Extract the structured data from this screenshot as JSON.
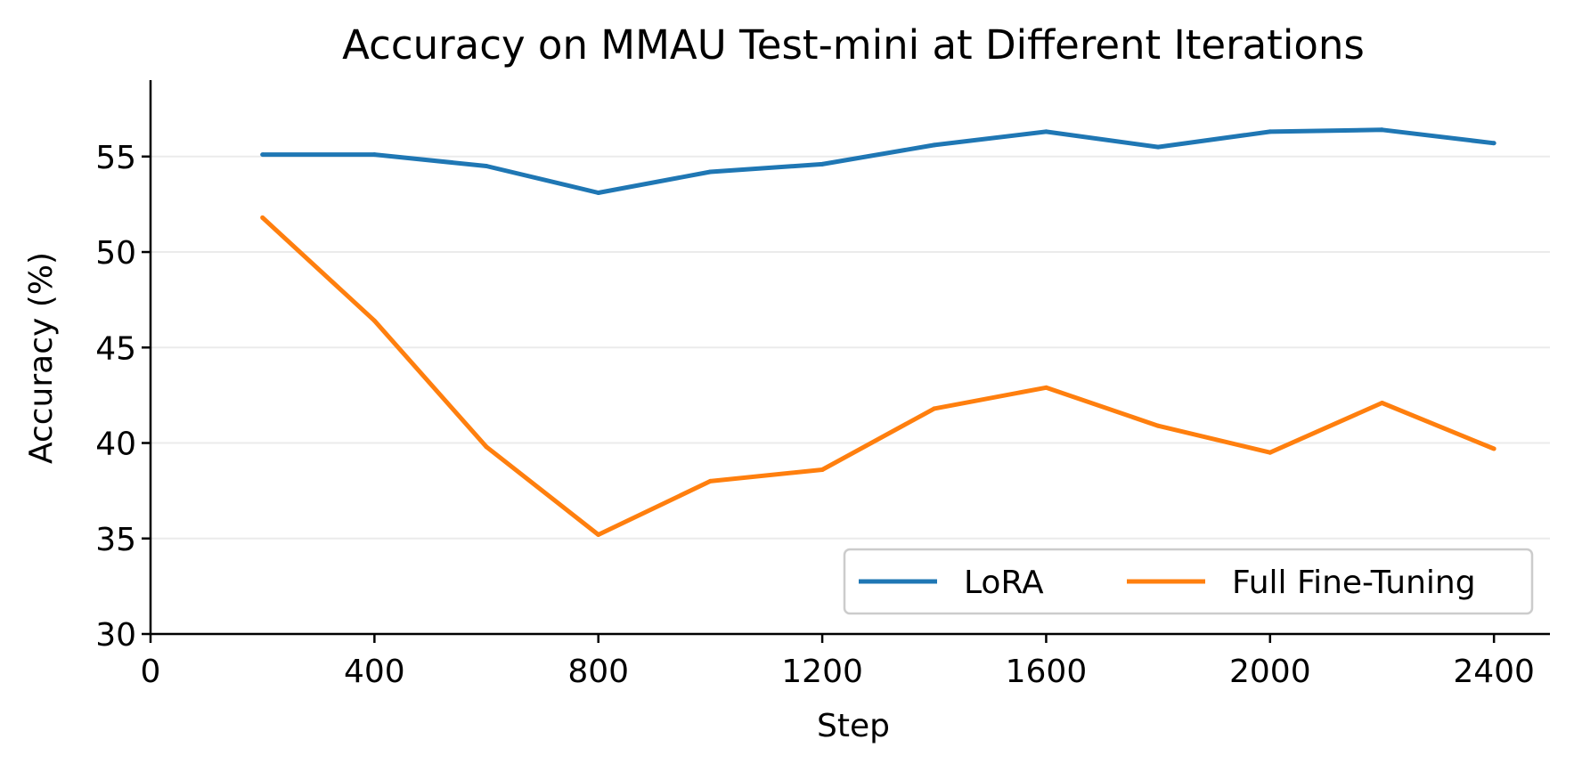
{
  "chart_data": {
    "type": "line",
    "title": "Accuracy on MMAU Test-mini at Different Iterations",
    "xlabel": "Step",
    "ylabel": "Accuracy (%)",
    "xlim": [
      0,
      2500
    ],
    "ylim": [
      30,
      59
    ],
    "xticks": [
      0,
      400,
      800,
      1200,
      1600,
      2000,
      2400
    ],
    "yticks": [
      30,
      35,
      40,
      45,
      50,
      55
    ],
    "grid": "horizontal",
    "legend_position": "lower-right",
    "x": [
      200,
      400,
      600,
      800,
      1000,
      1200,
      1400,
      1600,
      1800,
      2000,
      2200,
      2400
    ],
    "series": [
      {
        "name": "LoRA",
        "color": "#1f77b4",
        "values": [
          55.1,
          55.1,
          54.5,
          53.1,
          54.2,
          54.6,
          55.6,
          56.3,
          55.5,
          56.3,
          56.4,
          55.7
        ]
      },
      {
        "name": "Full Fine-Tuning",
        "color": "#ff7f0e",
        "values": [
          51.8,
          46.4,
          39.8,
          35.2,
          38.0,
          38.6,
          41.8,
          42.9,
          40.9,
          39.5,
          42.1,
          39.7
        ]
      }
    ]
  }
}
